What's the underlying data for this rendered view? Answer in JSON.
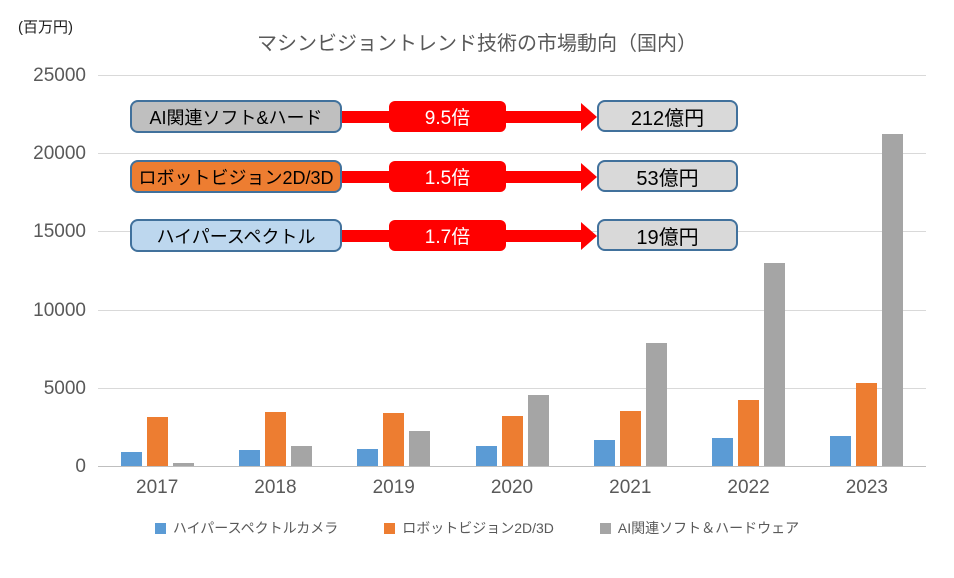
{
  "unit_label": "(百万円)",
  "colors": {
    "hyperspectral_blue": "#5B9BD5",
    "robot_vision_orange": "#ED7D31",
    "ai_gray": "#A5A5A5",
    "arrow_red": "#FF0000",
    "box_border_blue": "#41719C",
    "result_box_gray": "#D9D9D9",
    "label_box_gray": "#BFBFBF",
    "label_box_lightblue": "#BDD7EE",
    "axis_text_gray": "#595959",
    "gridline_gray": "#D9D9D9"
  },
  "annotations": [
    {
      "label": "AI関連ソフト&ハード",
      "label_bg": "#BFBFBF",
      "multiplier": "9.5倍",
      "result": "212億円"
    },
    {
      "label": "ロボットビジョン2D/3D",
      "label_bg": "#ED7D31",
      "multiplier": "1.5倍",
      "result": "53億円"
    },
    {
      "label": "ハイパースペクトル",
      "label_bg": "#BDD7EE",
      "multiplier": "1.7倍",
      "result": "19億円"
    }
  ],
  "chart_data": {
    "type": "bar",
    "title": "マシンビジョントレンド技術の市場動向（国内）",
    "unit_label": "(百万円)",
    "xlabel": "",
    "ylabel": "百万円",
    "categories": [
      "2017",
      "2018",
      "2019",
      "2020",
      "2021",
      "2022",
      "2023"
    ],
    "series": [
      {
        "name": "ハイパースペクトルカメラ",
        "color": "#5B9BD5",
        "values": [
          900,
          1050,
          1100,
          1300,
          1650,
          1800,
          1900
        ]
      },
      {
        "name": "ロボットビジョン2D/3D",
        "color": "#ED7D31",
        "values": [
          3150,
          3450,
          3400,
          3200,
          3500,
          4250,
          5300
        ]
      },
      {
        "name": "AI関連ソフト＆ハードウェア",
        "color": "#A5A5A5",
        "values": [
          200,
          1250,
          2250,
          4550,
          7850,
          13000,
          21200
        ]
      }
    ],
    "ylim": [
      0,
      25000
    ],
    "yticks": [
      0,
      5000,
      10000,
      15000,
      20000,
      25000
    ],
    "grid": true,
    "legend_position": "bottom"
  }
}
